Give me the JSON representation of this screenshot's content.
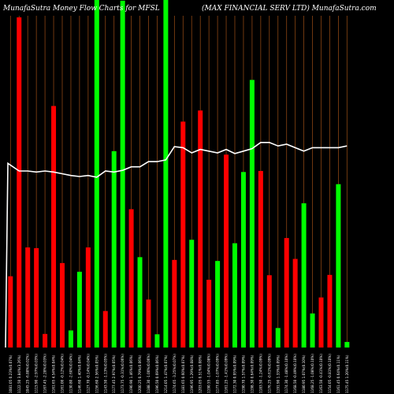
{
  "chart_data": {
    "type": "bar",
    "title_left": "MunafaSutra  Money Flow  Charts for MFSL",
    "title_right": "(MAX  FINANCIAL  SERV LTD) MunafaSutra.com",
    "ylim": [
      0,
      100
    ],
    "grid": true,
    "colors": {
      "background": "#000000",
      "up": "#00ff00",
      "down": "#ff0000",
      "grid": "#8b4513",
      "line": "#ffffff"
    },
    "bars": [
      {
        "label": "1081.05 0.23%(0.07%)",
        "value": 20.5,
        "color": "down"
      },
      {
        "label": "1122.50 3.84%(3.26%)",
        "value": 95.0,
        "color": "down"
      },
      {
        "label": "1045.25 -6.88%(0.02%)",
        "value": 28.8,
        "color": "down"
      },
      {
        "label": "1115.90 -2.97%(0.03%)",
        "value": 28.6,
        "color": "down"
      },
      {
        "label": "1167.45 -2.28%(0.03%)",
        "value": 3.9,
        "color": "down"
      },
      {
        "label": "1161.65 4.54%(0.04%)",
        "value": 69.5,
        "color": "down"
      },
      {
        "label": "1161.00 -0.12%(0.04%)",
        "value": 24.3,
        "color": "down"
      },
      {
        "label": "1130.80 -2.60%(0.04%)",
        "value": 4.9,
        "color": "up"
      },
      {
        "label": "1146.60 1.40%(0.04%)",
        "value": 21.8,
        "color": "up"
      },
      {
        "label": "1127.70 -0.14%(0.04%)",
        "value": 28.8,
        "color": "down"
      },
      {
        "label": "1156.60 2.56%(0.05%)",
        "value": 100.0,
        "color": "up"
      },
      {
        "label": "1143.50 -1.13%(0.05%)",
        "value": 10.5,
        "color": "down"
      },
      {
        "label": "1177.45 2.97%(0.05%)",
        "value": 56.5,
        "color": "up"
      },
      {
        "label": "1173.75 -0.31%(0.06%)",
        "value": 99.8,
        "color": "up"
      },
      {
        "label": "1190.90 1.46%(0.06%)",
        "value": 39.8,
        "color": "down"
      },
      {
        "label": "1200.25 0.79%(0.06%)",
        "value": 26.0,
        "color": "up"
      },
      {
        "label": "1188.30 -1.00%(0.06%)",
        "value": 13.8,
        "color": "down"
      },
      {
        "label": "1196.50 0.69%(0.06%)",
        "value": 3.8,
        "color": "up"
      },
      {
        "label": "1214.05 1.47%(0.07%)",
        "value": 100.0,
        "color": "up"
      },
      {
        "label": "1174.65 -3.25%(0.07%)",
        "value": 25.2,
        "color": "down"
      },
      {
        "label": "1181.65 0.60%(0.07%)",
        "value": 65.0,
        "color": "down"
      },
      {
        "label": "1196.95 1.29%(0.08%)",
        "value": 31.0,
        "color": "up"
      },
      {
        "label": "1203.05 0.51%(0.08%)",
        "value": 68.2,
        "color": "down"
      },
      {
        "label": "1190.55 -1.04%(0.08%)",
        "value": 19.5,
        "color": "down"
      },
      {
        "label": "1177.85 -1.07%(0.09%)",
        "value": 24.9,
        "color": "up"
      },
      {
        "label": "1161.25 -1.41%(0.09%)",
        "value": 55.5,
        "color": "down"
      },
      {
        "label": "1172.30 0.95%(0.09%)",
        "value": 30.0,
        "color": "up"
      },
      {
        "label": "1190.70 1.57%(0.09%)",
        "value": 50.5,
        "color": "up"
      },
      {
        "label": "1198.30 0.64%(0.09%)",
        "value": 77.0,
        "color": "up"
      },
      {
        "label": "1183.50 -1.24%(0.09%)",
        "value": 50.8,
        "color": "down"
      },
      {
        "label": "1176.25 -0.61%(0.09%)",
        "value": 20.8,
        "color": "down"
      },
      {
        "label": "1191.90 1.33%(0.09%)",
        "value": 5.6,
        "color": "up"
      },
      {
        "label": "1174.30 -1.48%(0.10%)",
        "value": 31.5,
        "color": "down"
      },
      {
        "label": "1168.50 -0.49%(0.10%)",
        "value": 25.5,
        "color": "down"
      },
      {
        "label": "1180.95 1.07%(0.10%)",
        "value": 41.5,
        "color": "up"
      },
      {
        "label": "1168.25 -1.08%(0.10%)",
        "value": 9.8,
        "color": "up"
      },
      {
        "label": "1163.50 -0.41%(0.10%)",
        "value": 14.4,
        "color": "down"
      },
      {
        "label": "1154.05 -0.81%(0.10%)",
        "value": 20.9,
        "color": "down"
      },
      {
        "label": "1161.45 0.64%(0.11%)",
        "value": 47.0,
        "color": "up"
      },
      {
        "label": "1175.45 1.20%(0.11%)",
        "value": 1.6,
        "color": "up"
      }
    ],
    "line": [
      53,
      50.8,
      50.8,
      50.5,
      50.8,
      50.5,
      50.0,
      49.5,
      49.2,
      49.5,
      49.0,
      50.8,
      50.5,
      51.0,
      52.0,
      52.0,
      53.5,
      53.5,
      54.0,
      57.8,
      57.5,
      56.0,
      57.0,
      56.5,
      56.0,
      57.0,
      55.8,
      56.5,
      57.2,
      59.0,
      59.0,
      58.0,
      58.5,
      57.5,
      56.5,
      57.5,
      57.5,
      57.5,
      57.5,
      58.0
    ]
  }
}
